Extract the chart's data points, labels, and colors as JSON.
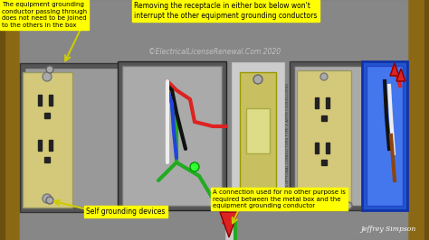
{
  "bg_color": "#2a2a2a",
  "wall_color": "#8B6914",
  "wall_dark": "#6B4F10",
  "box_gray": "#888888",
  "box_dark": "#555555",
  "box_medium": "#777777",
  "outlet_color": "#d4c97a",
  "outlet_dark": "#b0a55a",
  "switch_color": "#c8c060",
  "blue_box": "#2255cc",
  "blue_box_light": "#4477ee",
  "wire_green": "#22aa22",
  "wire_red": "#dd2222",
  "wire_black": "#111111",
  "wire_white": "#eeeeee",
  "wire_blue": "#2244dd",
  "wire_brown": "#8B4513",
  "wire_gray": "#999999",
  "label_bg": "#ffff00",
  "label_text": "#000000",
  "watermark_color": "#cccccc",
  "author_text": "#ffffff",
  "title_top": "Removing the receptacle in either box below won't\ninterrupt the other equipment grounding conductors",
  "label_topleft": "The equipment grounding\nconductor passing through\ndoes not need to be joined\nto the others in the box",
  "label_bottomleft": "Self grounding devices",
  "label_bottomright": "A connection used for no other purpose is\nrequired between the metal box and the\nequipment grounding conductor",
  "watermark": "©ElectricalLicenseRenewal.Com 2020",
  "author": "Jeffrey Simpson"
}
